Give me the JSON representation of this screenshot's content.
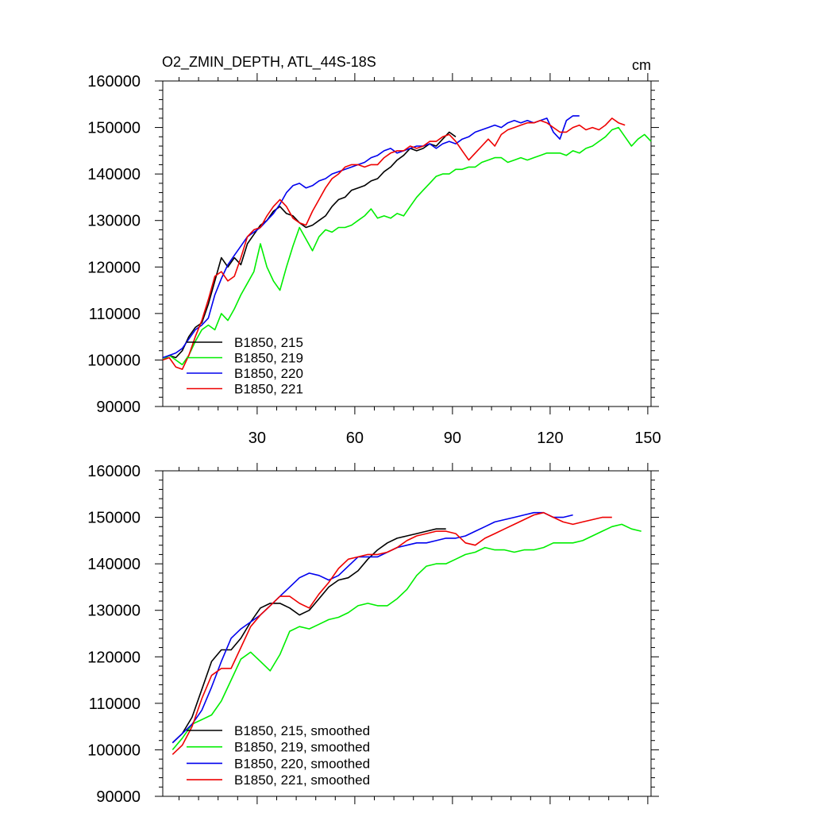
{
  "chart_data": [
    {
      "type": "line",
      "title": "O2_ZMIN_DEPTH, ATL_44S-18S",
      "unit": "cm",
      "xlim": [
        1,
        151
      ],
      "ylim": [
        90000,
        160000
      ],
      "xticks": [
        30,
        60,
        90,
        120,
        150
      ],
      "xtick_labels": [
        "30",
        "60",
        "90",
        "120",
        "150"
      ],
      "yticks": [
        90000,
        100000,
        110000,
        120000,
        130000,
        140000,
        150000,
        160000
      ],
      "ytick_labels": [
        "90000",
        "100000",
        "110000",
        "120000",
        "130000",
        "140000",
        "150000",
        "160000"
      ],
      "legend_position": "bottom-left",
      "series": [
        {
          "name": "B1850, 215",
          "color": "#000000",
          "x": [
            1,
            3,
            5,
            7,
            9,
            11,
            13,
            15,
            17,
            19,
            21,
            23,
            25,
            27,
            29,
            31,
            33,
            35,
            37,
            39,
            41,
            43,
            45,
            47,
            49,
            51,
            53,
            55,
            57,
            59,
            61,
            63,
            65,
            67,
            69,
            71,
            73,
            75,
            77,
            79,
            81,
            83,
            85,
            87,
            89,
            91
          ],
          "y": [
            100000,
            101000,
            100500,
            102000,
            105000,
            107000,
            108000,
            112000,
            117000,
            122000,
            120000,
            122000,
            120500,
            125000,
            127000,
            129000,
            130000,
            132000,
            133000,
            131500,
            131000,
            129500,
            128500,
            129000,
            130000,
            131000,
            133000,
            134500,
            135000,
            136500,
            137000,
            137500,
            138500,
            139000,
            140500,
            141500,
            143000,
            144000,
            145500,
            145000,
            145500,
            146500,
            146000,
            147500,
            149000,
            148000
          ]
        },
        {
          "name": "B1850, 219",
          "color": "#00ee00",
          "x": [
            1,
            3,
            5,
            7,
            9,
            11,
            13,
            15,
            17,
            19,
            21,
            23,
            25,
            27,
            29,
            31,
            33,
            35,
            37,
            39,
            41,
            43,
            45,
            47,
            49,
            51,
            53,
            55,
            57,
            59,
            61,
            63,
            65,
            67,
            69,
            71,
            73,
            75,
            77,
            79,
            81,
            83,
            85,
            87,
            89,
            91,
            93,
            95,
            97,
            99,
            101,
            103,
            105,
            107,
            109,
            111,
            113,
            115,
            117,
            119,
            121,
            123,
            125,
            127,
            129,
            131,
            133,
            135,
            137,
            139,
            141,
            143,
            145,
            147,
            149,
            151
          ],
          "y": [
            100000,
            101000,
            100000,
            99000,
            101000,
            104000,
            106500,
            107500,
            106500,
            110000,
            108500,
            111000,
            114000,
            116500,
            119000,
            125000,
            120000,
            117000,
            115000,
            120000,
            124500,
            128500,
            126000,
            123500,
            126500,
            128000,
            127500,
            128500,
            128500,
            129000,
            130000,
            131000,
            132500,
            130500,
            131000,
            130500,
            131500,
            131000,
            133000,
            135000,
            136500,
            138000,
            139500,
            140000,
            140000,
            141000,
            141000,
            141500,
            141500,
            142500,
            143000,
            143500,
            143500,
            142500,
            143000,
            143500,
            143000,
            143500,
            144000,
            144500,
            144500,
            144500,
            144000,
            145000,
            144500,
            145500,
            146000,
            147000,
            148000,
            149500,
            150000,
            148000,
            146000,
            147500,
            148500,
            147000
          ]
        },
        {
          "name": "B1850, 220",
          "color": "#0000ee",
          "x": [
            1,
            3,
            5,
            7,
            9,
            11,
            13,
            15,
            17,
            19,
            21,
            23,
            25,
            27,
            29,
            31,
            33,
            35,
            37,
            39,
            41,
            43,
            45,
            47,
            49,
            51,
            53,
            55,
            57,
            59,
            61,
            63,
            65,
            67,
            69,
            71,
            73,
            75,
            77,
            79,
            81,
            83,
            85,
            87,
            89,
            91,
            93,
            95,
            97,
            99,
            101,
            103,
            105,
            107,
            109,
            111,
            113,
            115,
            117,
            119,
            121,
            123,
            125,
            127,
            129
          ],
          "y": [
            100500,
            101000,
            101500,
            102500,
            104500,
            106500,
            107500,
            109000,
            114000,
            117500,
            120500,
            122500,
            124500,
            126500,
            127500,
            128500,
            130000,
            131500,
            133500,
            136000,
            137500,
            138000,
            137000,
            137500,
            138500,
            139000,
            140000,
            140500,
            141000,
            141500,
            142000,
            142500,
            143500,
            144000,
            145000,
            145500,
            144500,
            145000,
            145500,
            146000,
            146000,
            146500,
            145500,
            146500,
            147000,
            146500,
            147500,
            148000,
            149000,
            149500,
            150000,
            150500,
            150000,
            151000,
            151500,
            151000,
            151500,
            151000,
            151500,
            152000,
            149000,
            147500,
            151500,
            152500,
            152500
          ]
        },
        {
          "name": "B1850, 221",
          "color": "#ee0000",
          "x": [
            1,
            3,
            5,
            7,
            9,
            11,
            13,
            15,
            17,
            19,
            21,
            23,
            25,
            27,
            29,
            31,
            33,
            35,
            37,
            39,
            41,
            43,
            45,
            47,
            49,
            51,
            53,
            55,
            57,
            59,
            61,
            63,
            65,
            67,
            69,
            71,
            73,
            75,
            77,
            79,
            81,
            83,
            85,
            87,
            89,
            91,
            93,
            95,
            97,
            99,
            101,
            103,
            105,
            107,
            109,
            111,
            113,
            115,
            117,
            119,
            121,
            123,
            125,
            127,
            129,
            131,
            133,
            135,
            137,
            139,
            141,
            143
          ],
          "y": [
            100000,
            100500,
            98500,
            98000,
            101000,
            105000,
            108500,
            113000,
            118000,
            119000,
            117000,
            118000,
            122000,
            126500,
            128000,
            128500,
            131000,
            133000,
            134500,
            133000,
            130500,
            129500,
            129000,
            132000,
            134500,
            137000,
            139000,
            140000,
            141500,
            142000,
            142000,
            141500,
            142000,
            142000,
            143500,
            144500,
            145000,
            145000,
            146000,
            145500,
            146000,
            147000,
            147000,
            148000,
            148500,
            147000,
            145000,
            143000,
            144500,
            146000,
            147500,
            146000,
            148500,
            149500,
            150000,
            150500,
            151000,
            151000,
            151500,
            151000,
            150000,
            149000,
            149000,
            150000,
            150500,
            149500,
            150000,
            149500,
            150500,
            152000,
            151000,
            150500
          ]
        }
      ]
    },
    {
      "type": "line",
      "title": "",
      "xlim": [
        1,
        151
      ],
      "ylim": [
        90000,
        160000
      ],
      "xticks": [
        30,
        60,
        90,
        120,
        150
      ],
      "yticks": [
        90000,
        100000,
        110000,
        120000,
        130000,
        140000,
        150000,
        160000
      ],
      "ytick_labels": [
        "90000",
        "100000",
        "110000",
        "120000",
        "130000",
        "140000",
        "150000",
        "160000"
      ],
      "legend_position": "bottom-left",
      "series": [
        {
          "name": "B1850, 215, smoothed",
          "color": "#000000",
          "x": [
            4,
            7,
            10,
            13,
            16,
            19,
            22,
            25,
            28,
            31,
            34,
            37,
            40,
            43,
            46,
            49,
            52,
            55,
            58,
            61,
            64,
            67,
            70,
            73,
            76,
            79,
            82,
            85,
            88
          ],
          "y": [
            101500,
            103500,
            107000,
            113000,
            119000,
            121500,
            121500,
            124000,
            127500,
            130500,
            131500,
            131500,
            130500,
            129000,
            130000,
            132500,
            135000,
            136500,
            137000,
            138500,
            141000,
            143000,
            144500,
            145500,
            146000,
            146500,
            147000,
            147500,
            147500
          ]
        },
        {
          "name": "B1850, 219, smoothed",
          "color": "#00ee00",
          "x": [
            4,
            7,
            10,
            13,
            16,
            19,
            22,
            25,
            28,
            31,
            34,
            37,
            40,
            43,
            46,
            49,
            52,
            55,
            58,
            61,
            64,
            67,
            70,
            73,
            76,
            79,
            82,
            85,
            88,
            91,
            94,
            97,
            100,
            103,
            106,
            109,
            112,
            115,
            118,
            121,
            124,
            127,
            130,
            133,
            136,
            139,
            142,
            145,
            148
          ],
          "y": [
            100000,
            102500,
            105500,
            106500,
            107500,
            110500,
            115000,
            119500,
            121000,
            119000,
            117000,
            120500,
            125500,
            126500,
            126000,
            127000,
            128000,
            128500,
            129500,
            131000,
            131500,
            131000,
            131000,
            132500,
            134500,
            137500,
            139500,
            140000,
            140000,
            141000,
            142000,
            142500,
            143500,
            143000,
            143000,
            142500,
            143000,
            143000,
            143500,
            144500,
            144500,
            144500,
            145000,
            146000,
            147000,
            148000,
            148500,
            147500,
            147000
          ]
        },
        {
          "name": "B1850, 220, smoothed",
          "color": "#0000ee",
          "x": [
            4,
            7,
            10,
            13,
            16,
            19,
            22,
            25,
            28,
            31,
            34,
            37,
            40,
            43,
            46,
            49,
            52,
            55,
            58,
            61,
            64,
            67,
            70,
            73,
            76,
            79,
            82,
            85,
            88,
            91,
            94,
            97,
            100,
            103,
            106,
            109,
            112,
            115,
            118,
            121,
            124,
            127
          ],
          "y": [
            101500,
            103500,
            105500,
            108500,
            113500,
            119000,
            124000,
            126000,
            127500,
            129000,
            131000,
            133000,
            135000,
            137000,
            138000,
            137500,
            136500,
            137500,
            139500,
            141500,
            141500,
            141500,
            142500,
            143500,
            144000,
            144500,
            144500,
            145000,
            145500,
            145500,
            146000,
            147000,
            148000,
            149000,
            149500,
            150000,
            150500,
            151000,
            151000,
            150000,
            150000,
            150500
          ]
        },
        {
          "name": "B1850, 221, smoothed",
          "color": "#ee0000",
          "x": [
            4,
            7,
            10,
            13,
            16,
            19,
            22,
            25,
            28,
            31,
            34,
            37,
            40,
            43,
            46,
            49,
            52,
            55,
            58,
            61,
            64,
            67,
            70,
            73,
            76,
            79,
            82,
            85,
            88,
            91,
            94,
            97,
            100,
            103,
            106,
            109,
            112,
            115,
            118,
            121,
            124,
            127,
            130,
            133,
            136,
            139
          ],
          "y": [
            99000,
            101000,
            105000,
            111000,
            116000,
            117500,
            117500,
            122000,
            126500,
            129000,
            131000,
            133000,
            133000,
            131500,
            130500,
            133500,
            136000,
            139000,
            141000,
            141500,
            142000,
            142000,
            142500,
            143500,
            145000,
            146000,
            146500,
            147000,
            147000,
            146500,
            144500,
            144000,
            145500,
            146500,
            147500,
            148500,
            149500,
            150500,
            151000,
            150000,
            149000,
            148500,
            149000,
            149500,
            150000,
            150000
          ]
        }
      ]
    }
  ]
}
